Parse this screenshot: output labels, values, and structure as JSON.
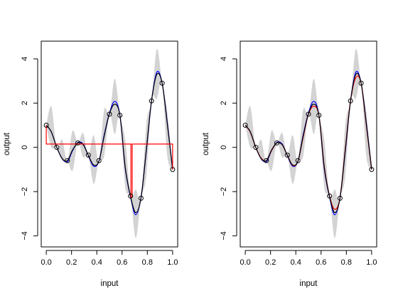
{
  "chart_data": [
    {
      "type": "line",
      "xlabel": "input",
      "ylabel": "output",
      "xlim": [
        -0.04,
        1.04
      ],
      "ylim": [
        -4.5,
        4.8
      ],
      "xticks": [
        0,
        0.2,
        0.4,
        0.6,
        0.8,
        1
      ],
      "xtick_labels": [
        "0.0",
        "0.2",
        "0.4",
        "0.6",
        "0.8",
        "1.0"
      ],
      "yticks": [
        -4,
        -2,
        0,
        2,
        4
      ],
      "ytick_labels": [
        "−4",
        "−2",
        "0",
        "2",
        "4"
      ],
      "band": {
        "name": "",
        "color": "#d3d3d3",
        "x": [
          0.0,
          0.04,
          0.083,
          0.125,
          0.167,
          0.208,
          0.25,
          0.292,
          0.333,
          0.375,
          0.417,
          0.458,
          0.5,
          0.542,
          0.583,
          0.625,
          0.667,
          0.708,
          0.75,
          0.792,
          0.833,
          0.875,
          0.917,
          0.958,
          1.0
        ],
        "lower": [
          1.0,
          0.0,
          0.0,
          -0.6,
          -0.6,
          -1.05,
          0.2,
          -0.45,
          -0.35,
          -1.65,
          -0.6,
          -0.4,
          1.5,
          0.6,
          1.45,
          -1.8,
          -2.2,
          -4.1,
          -2.3,
          -1.3,
          2.1,
          2.2,
          2.9,
          -0.4,
          -1.0
        ],
        "upper": [
          1.0,
          1.85,
          0.0,
          0.35,
          -0.6,
          0.75,
          0.2,
          0.65,
          -0.35,
          0.55,
          -0.6,
          1.7,
          1.5,
          3.1,
          1.45,
          0.35,
          -2.2,
          -1.9,
          -2.3,
          1.05,
          2.1,
          4.45,
          2.9,
          1.6,
          -1.0
        ]
      },
      "series": [
        {
          "name": "",
          "color": "#0000ff",
          "x": [
            0.0,
            0.04,
            0.083,
            0.125,
            0.167,
            0.208,
            0.25,
            0.292,
            0.333,
            0.375,
            0.417,
            0.458,
            0.5,
            0.542,
            0.583,
            0.625,
            0.667,
            0.708,
            0.75,
            0.792,
            0.833,
            0.875,
            0.917,
            0.958,
            1.0
          ],
          "y": [
            1.0,
            0.7,
            0.0,
            -0.5,
            -0.65,
            -0.15,
            0.22,
            0.15,
            -0.38,
            -0.85,
            -0.62,
            0.55,
            1.55,
            2.08,
            1.45,
            -0.95,
            -2.25,
            -3.05,
            -2.25,
            -0.15,
            2.1,
            3.4,
            2.9,
            1.1,
            -1.0
          ]
        },
        {
          "name": "",
          "color": "#000000",
          "x": [
            0.0,
            0.04,
            0.083,
            0.125,
            0.167,
            0.208,
            0.25,
            0.292,
            0.333,
            0.375,
            0.417,
            0.458,
            0.5,
            0.542,
            0.583,
            0.625,
            0.667,
            0.708,
            0.75,
            0.792,
            0.833,
            0.875,
            0.917,
            0.958,
            1.0
          ],
          "y": [
            1.0,
            0.7,
            0.0,
            -0.5,
            -0.6,
            -0.12,
            0.2,
            0.12,
            -0.36,
            -0.8,
            -0.62,
            0.5,
            1.52,
            1.95,
            1.44,
            -0.9,
            -2.22,
            -2.95,
            -2.28,
            -0.1,
            2.1,
            3.3,
            2.9,
            1.05,
            -1.0
          ]
        },
        {
          "name": "",
          "color": "#ff0000",
          "step": true,
          "x": [
            0.0,
            0.0,
            0.67,
            0.67,
            0.68,
            0.68,
            1.0,
            1.0
          ],
          "y": [
            1.0,
            0.15,
            0.15,
            -2.25,
            -2.25,
            0.15,
            0.15,
            -1.0
          ]
        }
      ],
      "points": {
        "x": [
          0.0,
          0.083,
          0.167,
          0.25,
          0.333,
          0.417,
          0.5,
          0.583,
          0.667,
          0.75,
          0.833,
          0.917,
          1.0
        ],
        "y": [
          1.0,
          0.0,
          -0.6,
          0.2,
          -0.35,
          -0.6,
          1.5,
          1.45,
          -2.2,
          -2.3,
          2.1,
          2.9,
          -1.0
        ]
      }
    },
    {
      "type": "line",
      "xlabel": "input",
      "ylabel": "output",
      "xlim": [
        -0.04,
        1.04
      ],
      "ylim": [
        -4.5,
        4.8
      ],
      "xticks": [
        0,
        0.2,
        0.4,
        0.6,
        0.8,
        1
      ],
      "xtick_labels": [
        "0.0",
        "0.2",
        "0.4",
        "0.6",
        "0.8",
        "1.0"
      ],
      "yticks": [
        -4,
        -2,
        0,
        2,
        4
      ],
      "ytick_labels": [
        "−4",
        "−2",
        "0",
        "2",
        "4"
      ],
      "band": {
        "name": "",
        "color": "#d3d3d3",
        "x": [
          0.0,
          0.04,
          0.083,
          0.125,
          0.167,
          0.208,
          0.25,
          0.292,
          0.333,
          0.375,
          0.417,
          0.458,
          0.5,
          0.542,
          0.583,
          0.625,
          0.667,
          0.708,
          0.75,
          0.792,
          0.833,
          0.875,
          0.917,
          0.958,
          1.0
        ],
        "lower": [
          1.0,
          0.0,
          0.0,
          -0.6,
          -0.6,
          -1.05,
          0.2,
          -0.45,
          -0.35,
          -1.65,
          -0.6,
          -0.4,
          1.5,
          0.6,
          1.45,
          -1.8,
          -2.2,
          -4.1,
          -2.3,
          -1.3,
          2.1,
          2.2,
          2.9,
          -0.4,
          -1.0
        ],
        "upper": [
          1.0,
          1.85,
          0.0,
          0.35,
          -0.6,
          0.75,
          0.2,
          0.65,
          -0.35,
          0.55,
          -0.6,
          1.7,
          1.5,
          3.1,
          1.45,
          0.35,
          -2.2,
          -1.9,
          -2.3,
          1.05,
          2.1,
          4.45,
          2.9,
          1.6,
          -1.0
        ]
      },
      "series": [
        {
          "name": "",
          "color": "#0000ff",
          "x": [
            0.0,
            0.04,
            0.083,
            0.125,
            0.167,
            0.208,
            0.25,
            0.292,
            0.333,
            0.375,
            0.417,
            0.458,
            0.5,
            0.542,
            0.583,
            0.625,
            0.667,
            0.708,
            0.75,
            0.792,
            0.833,
            0.875,
            0.917,
            0.958,
            1.0
          ],
          "y": [
            1.0,
            0.7,
            0.0,
            -0.5,
            -0.65,
            -0.15,
            0.22,
            0.15,
            -0.38,
            -0.85,
            -0.62,
            0.55,
            1.55,
            2.08,
            1.45,
            -0.95,
            -2.25,
            -3.05,
            -2.25,
            -0.15,
            2.1,
            3.4,
            2.9,
            1.1,
            -1.0
          ]
        },
        {
          "name": "",
          "color": "#ff0000",
          "x": [
            0.0,
            0.04,
            0.083,
            0.125,
            0.167,
            0.208,
            0.25,
            0.292,
            0.333,
            0.375,
            0.417,
            0.458,
            0.5,
            0.542,
            0.583,
            0.625,
            0.667,
            0.708,
            0.75,
            0.792,
            0.833,
            0.875,
            0.917,
            0.958,
            1.0
          ],
          "y": [
            1.0,
            0.68,
            0.0,
            -0.48,
            -0.6,
            -0.14,
            0.2,
            0.12,
            -0.36,
            -0.82,
            -0.62,
            0.45,
            1.5,
            1.85,
            1.44,
            -0.85,
            -2.2,
            -2.8,
            -2.28,
            -0.05,
            2.1,
            3.15,
            2.9,
            1.0,
            -1.0
          ]
        },
        {
          "name": "",
          "color": "#000000",
          "x": [
            0.0,
            0.04,
            0.083,
            0.125,
            0.167,
            0.208,
            0.25,
            0.292,
            0.333,
            0.375,
            0.417,
            0.458,
            0.5,
            0.542,
            0.583,
            0.625,
            0.667,
            0.708,
            0.75,
            0.792,
            0.833,
            0.875,
            0.917,
            0.958,
            1.0
          ],
          "y": [
            1.0,
            0.7,
            0.0,
            -0.5,
            -0.6,
            -0.12,
            0.2,
            0.12,
            -0.36,
            -0.8,
            -0.62,
            0.5,
            1.52,
            1.95,
            1.44,
            -0.9,
            -2.22,
            -2.95,
            -2.28,
            -0.1,
            2.1,
            3.3,
            2.9,
            1.05,
            -1.0
          ]
        }
      ],
      "points": {
        "x": [
          0.0,
          0.083,
          0.167,
          0.25,
          0.333,
          0.417,
          0.5,
          0.583,
          0.667,
          0.75,
          0.833,
          0.917,
          1.0
        ],
        "y": [
          1.0,
          0.0,
          -0.6,
          0.2,
          -0.35,
          -0.6,
          1.5,
          1.45,
          -2.2,
          -2.3,
          2.1,
          2.9,
          -1.0
        ]
      }
    }
  ]
}
